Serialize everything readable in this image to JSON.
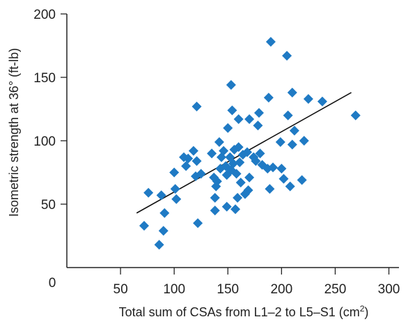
{
  "chart_data": {
    "type": "scatter",
    "xlabel": "Total sum of CSAs from L1–2 to L5–S1 (cm",
    "xlabel_sup": "2",
    "xlabel_end": ")",
    "ylabel": "Isometric strength at 36° (ft-lb)",
    "origin_label": "0",
    "xlim": [
      0,
      320
    ],
    "ylim": [
      0,
      200
    ],
    "x_ticks": [
      50,
      100,
      150,
      200,
      250,
      300
    ],
    "x_tick_labels": [
      "50",
      "100",
      "150",
      "200",
      "250",
      "300"
    ],
    "y_ticks": [
      50,
      100,
      150,
      200
    ],
    "y_tick_labels": [
      "50",
      "100",
      "150",
      "200"
    ],
    "grid": false,
    "legend": "none",
    "marker": "diamond",
    "marker_color": "#1f7ac4",
    "line_color": "#111111",
    "trendline": {
      "x": [
        65,
        265
      ],
      "y": [
        43,
        138
      ]
    },
    "points": [
      {
        "x": 72,
        "y": 33
      },
      {
        "x": 76,
        "y": 59
      },
      {
        "x": 86,
        "y": 18
      },
      {
        "x": 88,
        "y": 57
      },
      {
        "x": 90,
        "y": 29
      },
      {
        "x": 91,
        "y": 43
      },
      {
        "x": 100,
        "y": 75
      },
      {
        "x": 101,
        "y": 62
      },
      {
        "x": 102,
        "y": 54
      },
      {
        "x": 109,
        "y": 87
      },
      {
        "x": 111,
        "y": 80
      },
      {
        "x": 113,
        "y": 86
      },
      {
        "x": 118,
        "y": 92
      },
      {
        "x": 120,
        "y": 72
      },
      {
        "x": 121,
        "y": 84
      },
      {
        "x": 121,
        "y": 127
      },
      {
        "x": 122,
        "y": 35
      },
      {
        "x": 125,
        "y": 74
      },
      {
        "x": 135,
        "y": 90
      },
      {
        "x": 137,
        "y": 71
      },
      {
        "x": 138,
        "y": 45
      },
      {
        "x": 138,
        "y": 55
      },
      {
        "x": 139,
        "y": 64
      },
      {
        "x": 140,
        "y": 68
      },
      {
        "x": 142,
        "y": 99
      },
      {
        "x": 143,
        "y": 78
      },
      {
        "x": 144,
        "y": 87
      },
      {
        "x": 146,
        "y": 92
      },
      {
        "x": 148,
        "y": 80
      },
      {
        "x": 149,
        "y": 48
      },
      {
        "x": 149,
        "y": 73
      },
      {
        "x": 150,
        "y": 110
      },
      {
        "x": 152,
        "y": 87
      },
      {
        "x": 153,
        "y": 77
      },
      {
        "x": 153,
        "y": 144
      },
      {
        "x": 154,
        "y": 124
      },
      {
        "x": 155,
        "y": 82
      },
      {
        "x": 156,
        "y": 93
      },
      {
        "x": 157,
        "y": 46
      },
      {
        "x": 158,
        "y": 74
      },
      {
        "x": 159,
        "y": 55
      },
      {
        "x": 160,
        "y": 117
      },
      {
        "x": 160,
        "y": 95
      },
      {
        "x": 161,
        "y": 83
      },
      {
        "x": 162,
        "y": 67
      },
      {
        "x": 164,
        "y": 89
      },
      {
        "x": 166,
        "y": 58
      },
      {
        "x": 168,
        "y": 91
      },
      {
        "x": 169,
        "y": 61
      },
      {
        "x": 170,
        "y": 71
      },
      {
        "x": 170,
        "y": 117
      },
      {
        "x": 174,
        "y": 87
      },
      {
        "x": 176,
        "y": 84
      },
      {
        "x": 178,
        "y": 112
      },
      {
        "x": 179,
        "y": 122
      },
      {
        "x": 180,
        "y": 90
      },
      {
        "x": 182,
        "y": 81
      },
      {
        "x": 187,
        "y": 78
      },
      {
        "x": 188,
        "y": 134
      },
      {
        "x": 189,
        "y": 62
      },
      {
        "x": 190,
        "y": 178
      },
      {
        "x": 192,
        "y": 79
      },
      {
        "x": 199,
        "y": 99
      },
      {
        "x": 200,
        "y": 78
      },
      {
        "x": 202,
        "y": 70
      },
      {
        "x": 205,
        "y": 167
      },
      {
        "x": 206,
        "y": 120
      },
      {
        "x": 208,
        "y": 64
      },
      {
        "x": 210,
        "y": 97
      },
      {
        "x": 210,
        "y": 138
      },
      {
        "x": 212,
        "y": 108
      },
      {
        "x": 219,
        "y": 69
      },
      {
        "x": 221,
        "y": 100
      },
      {
        "x": 225,
        "y": 133
      },
      {
        "x": 238,
        "y": 131
      },
      {
        "x": 269,
        "y": 120
      }
    ]
  }
}
